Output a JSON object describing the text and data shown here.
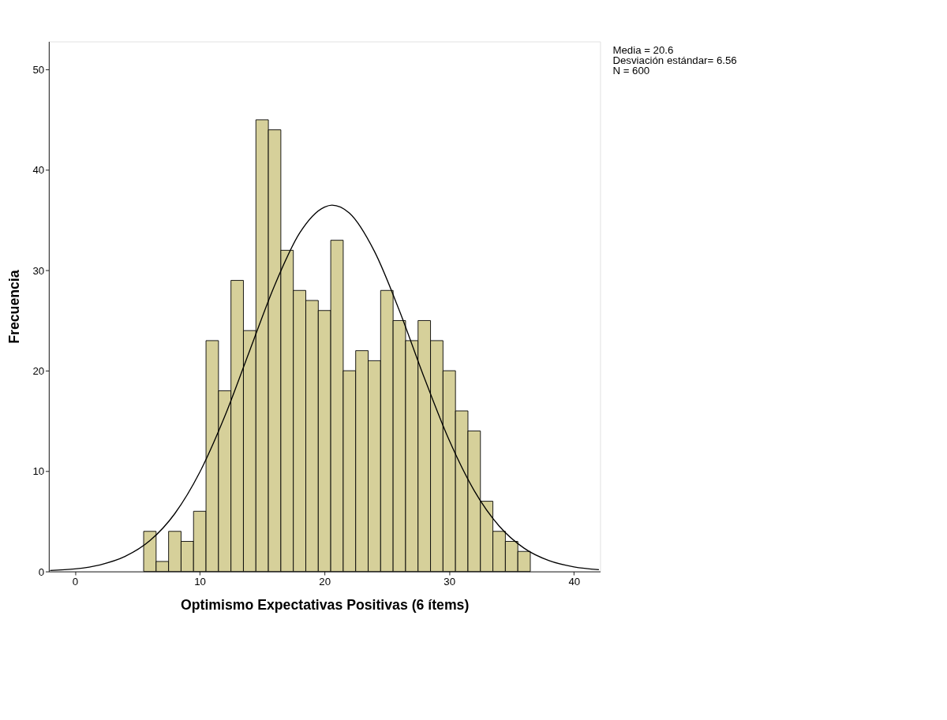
{
  "chart_data": {
    "type": "histogram",
    "xlabel": "Optimismo Expectativas Positivas (6 ítems)",
    "ylabel": "Frecuencia",
    "bins": [
      5.5,
      6.5,
      7.5,
      8.5,
      9.5,
      10.5,
      11.5,
      12.5,
      13.5,
      14.5,
      15.5,
      16.5,
      17.5,
      18.5,
      19.5,
      20.5,
      21.5,
      22.5,
      23.5,
      24.5,
      25.5,
      26.5,
      27.5,
      28.5,
      29.5,
      30.5,
      31.5,
      32.5,
      33.5,
      34.5,
      35.5,
      36.5
    ],
    "values": [
      4,
      1,
      4,
      3,
      6,
      23,
      18,
      29,
      24,
      45,
      44,
      32,
      28,
      27,
      26,
      33,
      20,
      22,
      21,
      28,
      25,
      23,
      25,
      23,
      20,
      16,
      14,
      7,
      4,
      3,
      2
    ],
    "color": "#d6d09a",
    "series": [
      {
        "type": "line",
        "color": "#000000",
        "x": [
          -2,
          0,
          2,
          4,
          6,
          8,
          10,
          12,
          14,
          16,
          18,
          20,
          20.6,
          22,
          24,
          26,
          28,
          30,
          32,
          34,
          36,
          38,
          40,
          42
        ],
        "values": [
          0.1,
          0.26,
          0.66,
          1.49,
          3.07,
          5.77,
          9.89,
          15.45,
          22.0,
          28.5,
          33.7,
          36.3,
          36.5,
          35.7,
          31.9,
          26.0,
          19.3,
          13.07,
          8.06,
          4.53,
          2.32,
          1.08,
          0.46,
          0.18
        ]
      }
    ],
    "xlim": [
      -2.1,
      42.1
    ],
    "xticks": [
      0,
      10,
      20,
      30,
      40
    ],
    "ylim": [
      0,
      52.8
    ],
    "yticks": [
      0,
      10,
      20,
      30,
      40,
      50
    ],
    "grid": false,
    "annotations": [
      "Media = 20.6",
      "Desviación estándar= 6.56",
      "N = 600"
    ]
  }
}
